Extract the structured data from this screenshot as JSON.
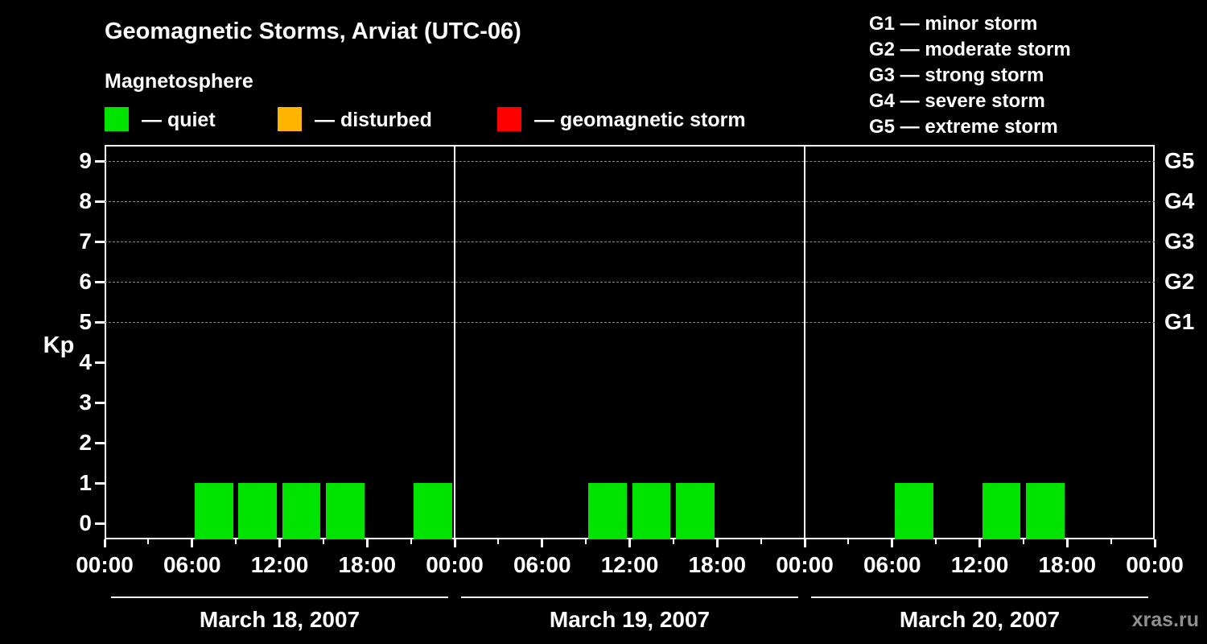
{
  "page": {
    "watermark": "xras.ru"
  },
  "header": {
    "title": "Geomagnetic Storms, Arviat (UTC-06)",
    "subtitle": "Magnetosphere"
  },
  "legend": {
    "items": [
      {
        "label": "— quiet",
        "color_key": "quiet"
      },
      {
        "label": "— disturbed",
        "color_key": "disturbed"
      },
      {
        "label": "— geomagnetic storm",
        "color_key": "storm"
      }
    ]
  },
  "storm_scale": {
    "items": [
      {
        "label": "G1 — minor storm"
      },
      {
        "label": "G2 — moderate storm"
      },
      {
        "label": "G3 — strong storm"
      },
      {
        "label": "G4 — severe storm"
      },
      {
        "label": "G5 — extreme storm"
      }
    ]
  },
  "chart_data": {
    "type": "bar",
    "title": "Geomagnetic Storms, Arviat (UTC-06)",
    "subtitle": "Magnetosphere",
    "ylabel": "Kp",
    "ylim": [
      0,
      9
    ],
    "y_ticks": [
      0,
      1,
      2,
      3,
      4,
      5,
      6,
      7,
      8,
      9
    ],
    "gridline_kp": [
      5,
      6,
      7,
      8,
      9
    ],
    "right_axis": [
      {
        "label": "G1",
        "kp": 5
      },
      {
        "label": "G2",
        "kp": 6
      },
      {
        "label": "G3",
        "kp": 7
      },
      {
        "label": "G4",
        "kp": 8
      },
      {
        "label": "G5",
        "kp": 9
      }
    ],
    "x_tick_labels": [
      "00:00",
      "06:00",
      "12:00",
      "18:00",
      "00:00",
      "06:00",
      "12:00",
      "18:00",
      "00:00",
      "06:00",
      "12:00",
      "18:00",
      "00:00"
    ],
    "hours_per_bar": 3,
    "days": [
      {
        "date": "March 18, 2007",
        "kp": [
          0,
          0,
          1,
          1,
          1,
          1,
          0,
          1
        ]
      },
      {
        "date": "March 19, 2007",
        "kp": [
          0,
          0,
          0,
          1,
          1,
          1,
          0,
          0
        ]
      },
      {
        "date": "March 20, 2007",
        "kp": [
          0,
          0,
          1,
          0,
          1,
          1,
          0,
          0
        ]
      }
    ],
    "colors": {
      "quiet": "#00e400",
      "disturbed": "#ffb400",
      "storm": "#ff0000"
    }
  }
}
